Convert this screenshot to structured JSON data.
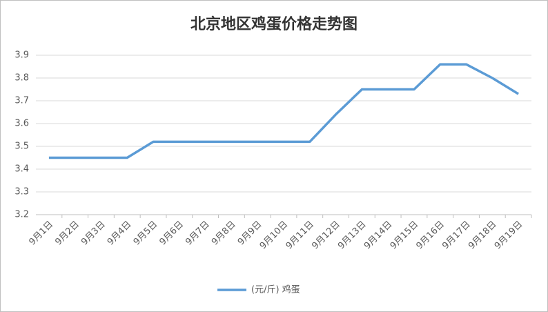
{
  "chart_data": {
    "type": "line",
    "title": "北京地区鸡蛋价格走势图",
    "categories": [
      "9月1日",
      "9月2日",
      "9月3日",
      "9月4日",
      "9月5日",
      "9月6日",
      "9月7日",
      "9月8日",
      "9月9日",
      "9月10日",
      "9月11日",
      "9月12日",
      "9月13日",
      "9月14日",
      "9月15日",
      "9月16日",
      "9月17日",
      "9月18日",
      "9月19日"
    ],
    "series": [
      {
        "name": "(元/斤) 鸡蛋",
        "color": "#5b9bd5",
        "values": [
          3.45,
          3.45,
          3.45,
          3.45,
          3.52,
          3.52,
          3.52,
          3.52,
          3.52,
          3.52,
          3.52,
          3.64,
          3.75,
          3.75,
          3.75,
          3.86,
          3.86,
          3.8,
          3.73
        ]
      }
    ],
    "ylim": [
      3.2,
      3.9
    ],
    "yticks": [
      3.2,
      3.3,
      3.4,
      3.5,
      3.6,
      3.7,
      3.8,
      3.9
    ],
    "grid": true,
    "legend": "bottom"
  }
}
